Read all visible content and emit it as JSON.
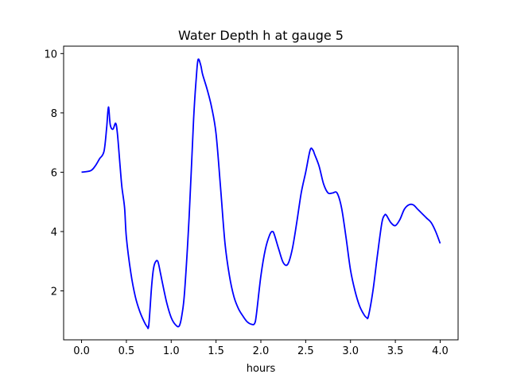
{
  "chart_data": {
    "type": "line",
    "title": "Water Depth h at gauge 5",
    "xlabel": "hours",
    "ylabel": "",
    "xlim": [
      -0.2,
      4.2
    ],
    "ylim": [
      0.35,
      10.25
    ],
    "xticks": [
      0.0,
      0.5,
      1.0,
      1.5,
      2.0,
      2.5,
      3.0,
      3.5,
      4.0
    ],
    "xtick_labels": [
      "0.0",
      "0.5",
      "1.0",
      "1.5",
      "2.0",
      "2.5",
      "3.0",
      "3.5",
      "4.0"
    ],
    "yticks": [
      2,
      4,
      6,
      8,
      10
    ],
    "ytick_labels": [
      "2",
      "4",
      "6",
      "8",
      "10"
    ],
    "grid": false,
    "series": [
      {
        "color": "#0000ff",
        "x": [
          0.0,
          0.1,
          0.15,
          0.2,
          0.25,
          0.28,
          0.3,
          0.32,
          0.35,
          0.38,
          0.4,
          0.43,
          0.45,
          0.48,
          0.5,
          0.55,
          0.6,
          0.65,
          0.7,
          0.73,
          0.75,
          0.78,
          0.8,
          0.82,
          0.85,
          0.88,
          0.9,
          0.95,
          1.0,
          1.05,
          1.09,
          1.12,
          1.15,
          1.2,
          1.25,
          1.28,
          1.3,
          1.33,
          1.35,
          1.4,
          1.45,
          1.5,
          1.55,
          1.6,
          1.65,
          1.7,
          1.75,
          1.8,
          1.85,
          1.9,
          1.93,
          1.95,
          2.0,
          2.05,
          2.1,
          2.13,
          2.15,
          2.2,
          2.25,
          2.3,
          2.35,
          2.4,
          2.45,
          2.5,
          2.55,
          2.58,
          2.6,
          2.65,
          2.7,
          2.75,
          2.8,
          2.85,
          2.9,
          2.95,
          3.0,
          3.05,
          3.1,
          3.15,
          3.18,
          3.2,
          3.25,
          3.3,
          3.35,
          3.38,
          3.4,
          3.45,
          3.5,
          3.55,
          3.6,
          3.65,
          3.7,
          3.75,
          3.8,
          3.85,
          3.9,
          3.95,
          4.0
        ],
        "y": [
          6.0,
          6.05,
          6.2,
          6.45,
          6.7,
          7.5,
          8.2,
          7.6,
          7.45,
          7.65,
          7.3,
          6.2,
          5.5,
          4.8,
          3.8,
          2.6,
          1.8,
          1.3,
          0.95,
          0.8,
          0.85,
          2.1,
          2.7,
          2.95,
          3.0,
          2.6,
          2.3,
          1.6,
          1.1,
          0.85,
          0.82,
          1.2,
          2.0,
          4.5,
          7.8,
          9.2,
          9.8,
          9.6,
          9.3,
          8.8,
          8.2,
          7.3,
          5.5,
          3.6,
          2.5,
          1.8,
          1.4,
          1.15,
          0.95,
          0.87,
          0.9,
          1.2,
          2.5,
          3.4,
          3.9,
          4.0,
          3.9,
          3.4,
          2.95,
          2.9,
          3.4,
          4.3,
          5.3,
          6.0,
          6.75,
          6.75,
          6.6,
          6.2,
          5.6,
          5.3,
          5.3,
          5.3,
          4.8,
          3.8,
          2.7,
          2.0,
          1.5,
          1.2,
          1.1,
          1.15,
          2.0,
          3.2,
          4.3,
          4.55,
          4.55,
          4.3,
          4.2,
          4.4,
          4.75,
          4.9,
          4.9,
          4.75,
          4.6,
          4.45,
          4.3,
          4.0,
          3.6
        ]
      }
    ]
  }
}
